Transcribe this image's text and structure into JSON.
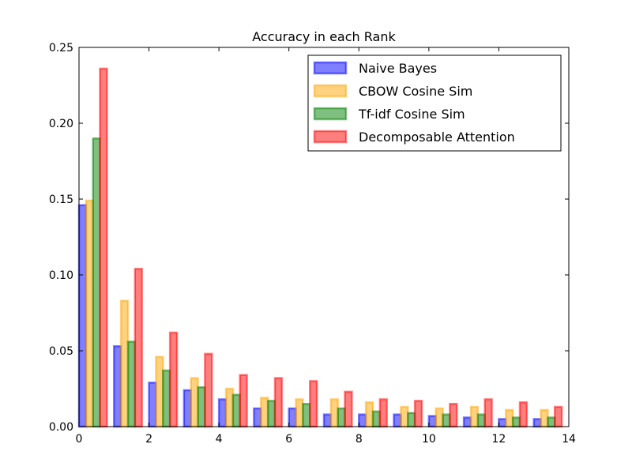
{
  "chart_data": {
    "type": "bar",
    "title": "Accuracy in each Rank",
    "xlabel": "",
    "ylabel": "",
    "xlim": [
      0,
      14
    ],
    "ylim": [
      0,
      0.25
    ],
    "xticks": [
      "0",
      "2",
      "4",
      "6",
      "8",
      "10",
      "12",
      "14"
    ],
    "yticks": [
      "0.00",
      "0.05",
      "0.10",
      "0.15",
      "0.20",
      "0.25"
    ],
    "grid": false,
    "legend_position": "top-right",
    "categories": [
      0,
      1,
      2,
      3,
      4,
      5,
      6,
      7,
      8,
      9,
      10,
      11,
      12,
      13
    ],
    "bar_width": 0.2,
    "series": [
      {
        "name": "Naive Bayes",
        "color": "#0000ff",
        "values": [
          0.146,
          0.053,
          0.029,
          0.024,
          0.018,
          0.012,
          0.012,
          0.008,
          0.008,
          0.008,
          0.007,
          0.006,
          0.005,
          0.005
        ]
      },
      {
        "name": "CBOW Cosine Sim",
        "color": "#ffa500",
        "values": [
          0.149,
          0.083,
          0.046,
          0.032,
          0.025,
          0.019,
          0.018,
          0.018,
          0.016,
          0.013,
          0.012,
          0.013,
          0.011,
          0.011
        ]
      },
      {
        "name": "Tf-idf Cosine Sim",
        "color": "#008000",
        "values": [
          0.19,
          0.056,
          0.037,
          0.026,
          0.021,
          0.017,
          0.015,
          0.012,
          0.01,
          0.009,
          0.008,
          0.008,
          0.006,
          0.006
        ]
      },
      {
        "name": "Decomposable Attention",
        "color": "#ff0000",
        "values": [
          0.236,
          0.104,
          0.062,
          0.048,
          0.034,
          0.032,
          0.03,
          0.023,
          0.018,
          0.017,
          0.015,
          0.018,
          0.016,
          0.013
        ]
      }
    ]
  }
}
